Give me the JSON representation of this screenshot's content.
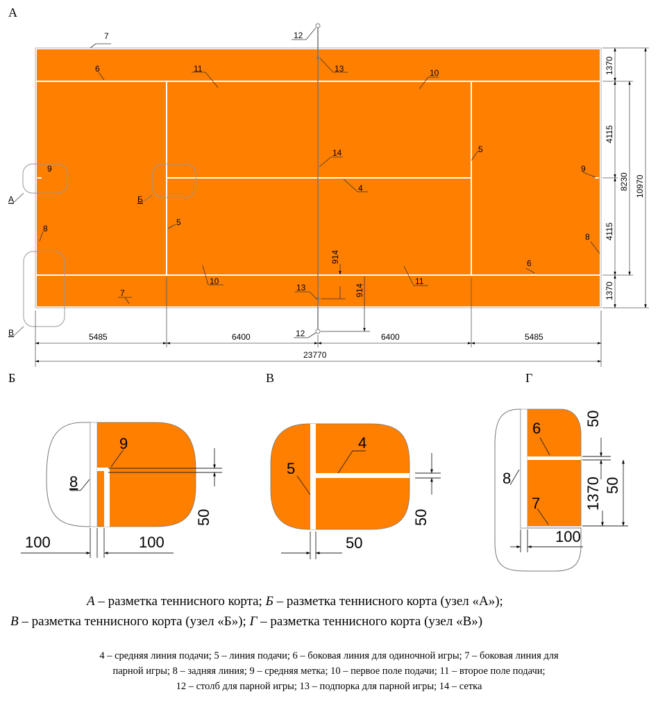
{
  "court_color": "#ff7f00",
  "section_letters": {
    "a": "А",
    "b": "Б",
    "v": "В",
    "g": "Г"
  },
  "main": {
    "callouts": {
      "n4": "4",
      "n5l": "5",
      "n5r": "5",
      "n6t": "6",
      "n6b": "6",
      "n7t": "7",
      "n7b": "7",
      "n8l": "8",
      "n8r": "8",
      "n9l": "9",
      "n9r": "9",
      "n10t": "10",
      "n10b": "10",
      "n11t": "11",
      "n11b": "11",
      "n12t": "12",
      "n12b": "12",
      "n13t": "13",
      "n13b": "13",
      "n14": "14"
    },
    "node_letters": {
      "a": "А",
      "b": "Б",
      "v": "В"
    },
    "dims": {
      "d5485l": "5485",
      "d6400l": "6400",
      "d6400r": "6400",
      "d5485r": "5485",
      "d23770": "23770",
      "d1370t": "1370",
      "d4115t": "4115",
      "d4115b": "4115",
      "d1370b": "1370",
      "d8230": "8230",
      "d10970": "10970",
      "d914a": "914",
      "d914b": "914"
    }
  },
  "detail_b": {
    "n9": "9",
    "n8": "8",
    "d50": "50",
    "d100l": "100",
    "d100r": "100"
  },
  "detail_v": {
    "n4": "4",
    "n5": "5",
    "d50v": "50",
    "d50h": "50"
  },
  "detail_g": {
    "n6": "6",
    "n7": "7",
    "n8": "8",
    "d50a": "50",
    "d50b": "50",
    "d1370": "1370",
    "d100": "100"
  },
  "caption": {
    "l1_a": "А",
    "l1_a_text": " – разметка теннисного корта; ",
    "l1_b": "Б",
    "l1_b_text": " – разметка теннисного корта (узел «А»);",
    "l2_v": "В",
    "l2_v_text": " –  разметка теннисного корта (узел «Б»); ",
    "l2_g": "Г",
    "l2_g_text": " – разметка теннисного корта (узел «В»)"
  },
  "legend": {
    "line1": "4 – средняя линия подачи; 5 – линия подачи; 6 – боковая линия для одиночной игры; 7 – боковая линия для",
    "line2": "парной игры; 8 – задняя линия; 9 – средняя метка; 10 – первое поле подачи; 11 – второе поле подачи;",
    "line3": "12 – столб для парной игры; 13 – подпорка для парной игры; 14 – сетка"
  }
}
